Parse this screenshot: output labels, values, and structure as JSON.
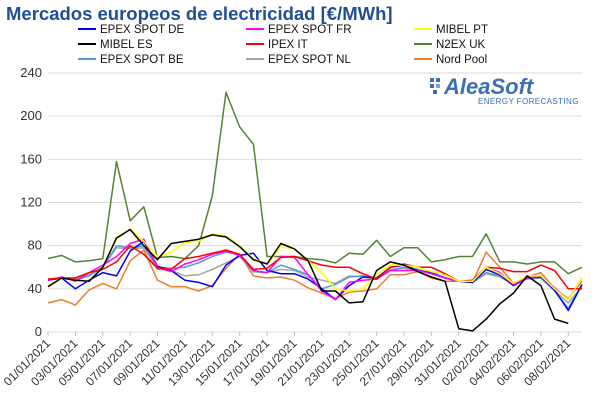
{
  "header": {
    "title": "Mercados europeos de electricidad [€/MWh]"
  },
  "logo": {
    "name": "AleaSoft",
    "tagline": "ENERGY FORECASTING",
    "color": "#3a6fb4"
  },
  "chart_data": {
    "type": "line",
    "title": "Mercados europeos de electricidad [€/MWh]",
    "xlabel": "",
    "ylabel": "",
    "ylim": [
      0,
      240
    ],
    "yticks": [
      0,
      40,
      80,
      120,
      160,
      200,
      240
    ],
    "grid": true,
    "legend_position": "top",
    "x": [
      "01/01/2021",
      "02/01/2021",
      "03/01/2021",
      "04/01/2021",
      "05/01/2021",
      "06/01/2021",
      "07/01/2021",
      "08/01/2021",
      "09/01/2021",
      "10/01/2021",
      "11/01/2021",
      "12/01/2021",
      "13/01/2021",
      "14/01/2021",
      "15/01/2021",
      "16/01/2021",
      "17/01/2021",
      "18/01/2021",
      "19/01/2021",
      "20/01/2021",
      "21/01/2021",
      "22/01/2021",
      "23/01/2021",
      "24/01/2021",
      "25/01/2021",
      "26/01/2021",
      "27/01/2021",
      "28/01/2021",
      "29/01/2021",
      "30/01/2021",
      "31/01/2021",
      "01/02/2021",
      "02/02/2021",
      "03/02/2021",
      "04/02/2021",
      "05/02/2021",
      "06/02/2021",
      "07/02/2021",
      "08/02/2021",
      "09/02/2021"
    ],
    "xtick_labels": [
      "01/01/2021",
      "03/01/2021",
      "05/01/2021",
      "07/01/2021",
      "09/01/2021",
      "11/01/2021",
      "13/01/2021",
      "15/01/2021",
      "17/01/2021",
      "19/01/2021",
      "21/01/2021",
      "23/01/2021",
      "25/01/2021",
      "27/01/2021",
      "29/01/2021",
      "31/01/2021",
      "02/02/2021",
      "04/02/2021",
      "06/02/2021",
      "08/02/2021"
    ],
    "series": [
      {
        "name": "EPEX SPOT DE",
        "color": "#0000ff",
        "values": [
          48,
          50,
          40,
          48,
          55,
          52,
          75,
          84,
          61,
          57,
          48,
          46,
          42,
          62,
          71,
          73,
          57,
          54,
          54,
          49,
          40,
          30,
          43,
          51,
          50,
          60,
          62,
          57,
          55,
          50,
          47,
          46,
          58,
          53,
          43,
          50,
          51,
          39,
          20,
          44
        ]
      },
      {
        "name": "EPEX SPOT FR",
        "color": "#ff00ff",
        "values": [
          48,
          51,
          47,
          55,
          62,
          70,
          82,
          86,
          60,
          56,
          63,
          67,
          72,
          75,
          71,
          57,
          55,
          70,
          69,
          53,
          38,
          30,
          46,
          48,
          49,
          57,
          57,
          57,
          54,
          50,
          47,
          47,
          60,
          55,
          44,
          50,
          52,
          41,
          30,
          50
        ]
      },
      {
        "name": "MIBEL PT",
        "color": "#ffff00",
        "values": [
          43,
          50,
          48,
          47,
          60,
          88,
          95,
          84,
          70,
          74,
          83,
          84,
          91,
          89,
          80,
          68,
          63,
          79,
          77,
          66,
          55,
          40,
          38,
          40,
          53,
          62,
          62,
          60,
          56,
          53,
          47,
          47,
          60,
          54,
          45,
          52,
          52,
          40,
          30,
          50
        ]
      },
      {
        "name": "MIBEL ES",
        "color": "#000000",
        "values": [
          42,
          50,
          48,
          47,
          60,
          87,
          95,
          80,
          67,
          82,
          84,
          86,
          90,
          88,
          79,
          67,
          63,
          82,
          77,
          66,
          38,
          38,
          27,
          28,
          57,
          65,
          62,
          56,
          51,
          47,
          3,
          1,
          12,
          26,
          36,
          52,
          43,
          12,
          8,
          null
        ]
      },
      {
        "name": "IPEX IT",
        "color": "#ff0000",
        "values": [
          49,
          50,
          50,
          55,
          58,
          65,
          80,
          72,
          59,
          58,
          68,
          70,
          73,
          76,
          72,
          58,
          59,
          69,
          70,
          66,
          62,
          60,
          60,
          54,
          49,
          60,
          63,
          60,
          60,
          54,
          47,
          48,
          60,
          59,
          56,
          56,
          62,
          57,
          40,
          40
        ]
      },
      {
        "name": "N2EX UK",
        "color": "#548235",
        "values": [
          68,
          71,
          65,
          66,
          68,
          158,
          103,
          116,
          69,
          70,
          68,
          80,
          126,
          222,
          190,
          174,
          70,
          70,
          70,
          68,
          67,
          64,
          73,
          72,
          85,
          70,
          78,
          78,
          65,
          67,
          70,
          70,
          91,
          65,
          65,
          63,
          65,
          65,
          54,
          60
        ]
      },
      {
        "name": "EPEX SPOT BE",
        "color": "#5b9bd5",
        "values": [
          48,
          50,
          48,
          52,
          60,
          80,
          78,
          80,
          60,
          59,
          60,
          64,
          70,
          74,
          72,
          56,
          55,
          62,
          58,
          53,
          40,
          44,
          51,
          52,
          49,
          57,
          60,
          58,
          54,
          50,
          47,
          46,
          55,
          52,
          44,
          50,
          50,
          38,
          22,
          44
        ]
      },
      {
        "name": "EPEX SPOT NL",
        "color": "#a5a5a5",
        "values": [
          49,
          50,
          49,
          53,
          60,
          78,
          77,
          78,
          58,
          57,
          52,
          53,
          58,
          64,
          70,
          56,
          55,
          58,
          57,
          51,
          48,
          45,
          52,
          51,
          49,
          58,
          59,
          57,
          54,
          50,
          47,
          46,
          54,
          51,
          44,
          49,
          50,
          38,
          27,
          42
        ]
      },
      {
        "name": "Nord Pool",
        "color": "#ed7d31",
        "values": [
          27,
          30,
          25,
          39,
          45,
          40,
          66,
          76,
          48,
          42,
          42,
          38,
          43,
          59,
          72,
          52,
          50,
          51,
          48,
          41,
          36,
          31,
          37,
          38,
          40,
          53,
          53,
          56,
          50,
          47,
          47,
          46,
          74,
          60,
          45,
          51,
          55,
          40,
          31,
          47
        ]
      }
    ]
  }
}
